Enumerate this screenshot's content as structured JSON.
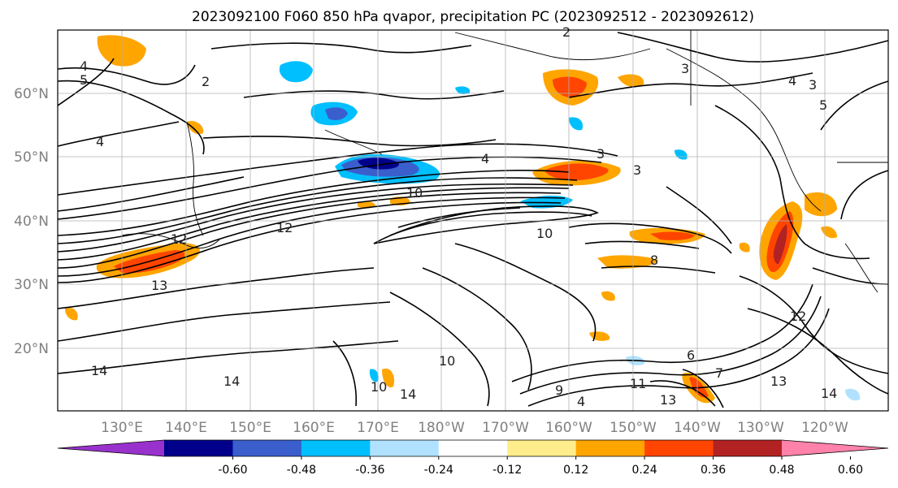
{
  "title": "2023092100 F060 850 hPa qvapor, precipitation PC (2023092512 - 2023092612)",
  "lat_labels": [
    "60°N",
    "50°N",
    "40°N",
    "30°N",
    "20°N"
  ],
  "lon_labels": [
    "130°E",
    "140°E",
    "150°E",
    "160°E",
    "170°E",
    "180°W",
    "170°W",
    "160°W",
    "150°W",
    "140°W",
    "130°W",
    "120°W"
  ],
  "colorbar": {
    "colors": [
      "#9932cc",
      "#00008b",
      "#3a5fcd",
      "#00bfff",
      "#b0e2ff",
      "#ffffff",
      "#ffec8b",
      "#ffa500",
      "#ff4500",
      "#b22222",
      "#ff82ab"
    ],
    "ticks": [
      "-0.60",
      "-0.48",
      "-0.36",
      "-0.24",
      "-0.12",
      "0.12",
      "0.24",
      "0.36",
      "0.48",
      "0.60"
    ]
  },
  "contour_labels": [
    "2",
    "4",
    "5",
    "2",
    "3",
    "4",
    "3",
    "5",
    "4",
    "3",
    "3",
    "4",
    "10",
    "12",
    "13",
    "14",
    "14",
    "10",
    "10",
    "12",
    "13",
    "14",
    "9",
    "10",
    "4",
    "7",
    "6",
    "11",
    "13",
    "14",
    "12",
    "8"
  ],
  "colors": {
    "shade_blue": "#00bfff",
    "shade_dark_blue": "#00008b",
    "shade_orange": "#ffa500",
    "shade_red": "#ff4500",
    "shade_yellow": "#ffec8b"
  }
}
